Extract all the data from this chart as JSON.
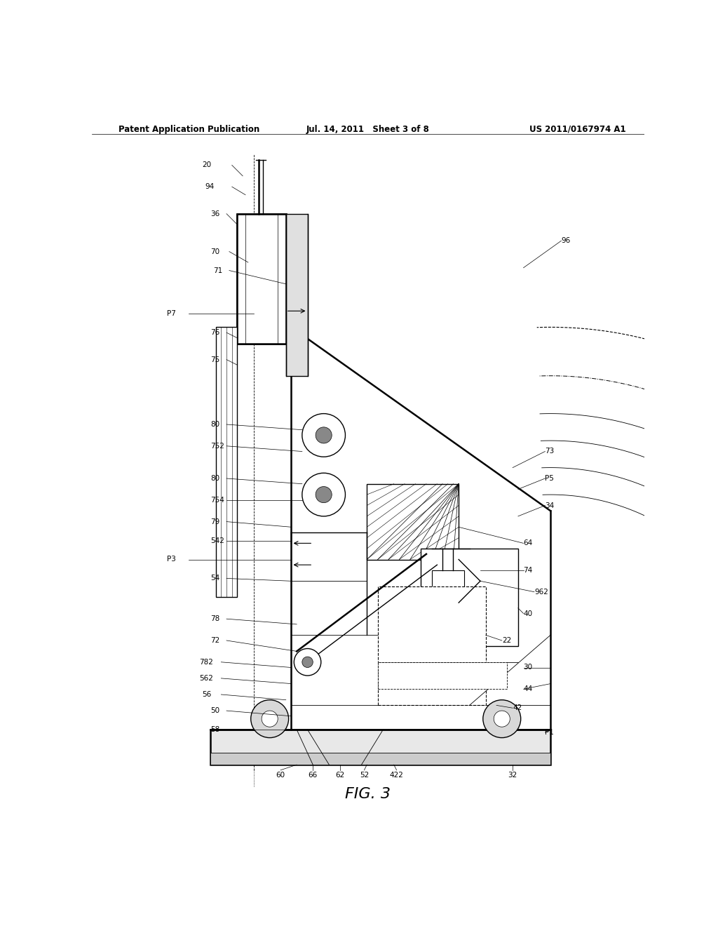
{
  "title": "FIG. 3",
  "header_left": "Patent Application Publication",
  "header_center": "Jul. 14, 2011   Sheet 3 of 8",
  "header_right": "US 2011/0167974 A1",
  "bg_color": "#ffffff",
  "line_color": "#000000",
  "fig_width": 10.24,
  "fig_height": 13.2,
  "dpi": 100
}
